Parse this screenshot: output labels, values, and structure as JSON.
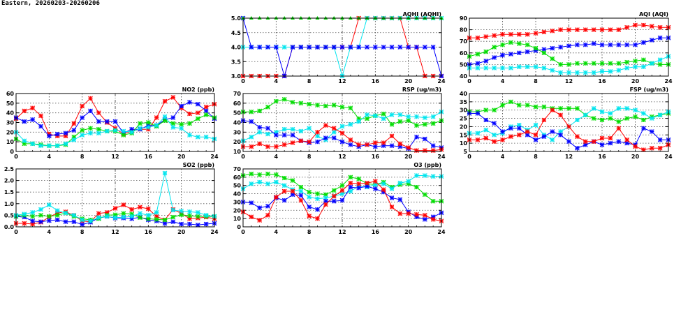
{
  "header": {
    "title": "Eastern, 20260203-20260206"
  },
  "series_colors": [
    "#ff0000",
    "#0000ff",
    "#00dd00",
    "#00e5ee"
  ],
  "chart_data": [
    {
      "type": "line",
      "title": "AQHI (AQHI)",
      "ylim": [
        3,
        5
      ],
      "yticks": [
        "3.0",
        "3.5",
        "4.0",
        "4.5",
        "5.0"
      ],
      "xlim": [
        0,
        24
      ],
      "xticks": [
        "0",
        "4",
        "8",
        "12",
        "16",
        "20",
        "24"
      ],
      "grid": true,
      "series": [
        {
          "name": "red",
          "values": [
            3,
            3,
            3,
            3,
            3,
            3,
            4,
            4,
            4,
            4,
            4,
            4,
            4,
            4,
            5,
            5,
            5,
            5,
            5,
            5,
            4,
            4,
            3,
            3,
            3
          ]
        },
        {
          "name": "cyan",
          "values": [
            4,
            4,
            4,
            4,
            4,
            4,
            4,
            4,
            4,
            4,
            4,
            4,
            3,
            4,
            4,
            5,
            5,
            5,
            5,
            5,
            5,
            5,
            5,
            5,
            5
          ]
        },
        {
          "name": "blue",
          "values": [
            5,
            4,
            4,
            4,
            4,
            3,
            4,
            4,
            4,
            4,
            4,
            4,
            4,
            4,
            4,
            4,
            4,
            4,
            4,
            4,
            4,
            4,
            4,
            4,
            3
          ]
        },
        {
          "name": "green",
          "values": [
            5,
            5,
            5,
            5,
            5,
            5,
            5,
            5,
            5,
            5,
            5,
            5,
            5,
            5,
            5,
            5,
            5,
            5,
            5,
            5,
            5,
            5,
            5,
            5,
            5
          ]
        }
      ]
    },
    {
      "type": "line",
      "title": "AQI (AQI)",
      "ylim": [
        40,
        90
      ],
      "yticks": [
        "40",
        "50",
        "60",
        "70",
        "80",
        "90"
      ],
      "xlim": [
        0,
        24
      ],
      "xticks": [
        "0",
        "4",
        "8",
        "12",
        "16",
        "20",
        "24"
      ],
      "grid": true,
      "series": [
        {
          "name": "red",
          "values": [
            73,
            73,
            74,
            75,
            76,
            76,
            76,
            76,
            77,
            78,
            79,
            80,
            80,
            80,
            80,
            80,
            80,
            80,
            80,
            82,
            84,
            84,
            83,
            82,
            82
          ]
        },
        {
          "name": "blue",
          "values": [
            50,
            51,
            53,
            56,
            58,
            59,
            60,
            61,
            62,
            63,
            64,
            65,
            66,
            67,
            67,
            68,
            67,
            67,
            67,
            67,
            67,
            69,
            71,
            73,
            73
          ]
        },
        {
          "name": "green",
          "values": [
            57,
            59,
            61,
            65,
            67,
            69,
            68,
            67,
            64,
            60,
            55,
            50,
            50,
            51,
            51,
            51,
            51,
            51,
            51,
            52,
            53,
            54,
            51,
            50,
            50
          ]
        },
        {
          "name": "cyan",
          "values": [
            47,
            47,
            47,
            47,
            47,
            47,
            48,
            48,
            48,
            47,
            45,
            43,
            43,
            43,
            43,
            43,
            44,
            44,
            45,
            47,
            48,
            48,
            51,
            54,
            57
          ]
        }
      ]
    },
    {
      "type": "line",
      "title": "NO2 (ppb)",
      "ylim": [
        0,
        60
      ],
      "yticks": [
        "0",
        "10",
        "20",
        "30",
        "40",
        "50",
        "60"
      ],
      "xlim": [
        0,
        24
      ],
      "xticks": [
        "0",
        "4",
        "8",
        "12",
        "16",
        "20",
        "24"
      ],
      "grid": true,
      "series": [
        {
          "name": "red",
          "values": [
            34,
            42,
            45,
            37,
            18,
            16,
            16,
            29,
            47,
            55,
            40,
            30,
            24,
            18,
            21,
            23,
            23,
            35,
            52,
            56,
            45,
            39,
            40,
            46,
            49
          ]
        },
        {
          "name": "blue",
          "values": [
            35,
            31,
            33,
            26,
            16,
            18,
            19,
            22,
            35,
            42,
            31,
            31,
            31,
            19,
            23,
            23,
            27,
            27,
            33,
            35,
            47,
            51,
            49,
            42,
            34
          ]
        },
        {
          "name": "green",
          "values": [
            13,
            8,
            8,
            7,
            6,
            6,
            7,
            15,
            22,
            24,
            23,
            21,
            21,
            17,
            19,
            29,
            30,
            26,
            32,
            29,
            28,
            29,
            34,
            38,
            35
          ]
        },
        {
          "name": "cyan",
          "values": [
            20,
            11,
            8,
            6,
            6,
            6,
            8,
            12,
            17,
            19,
            19,
            21,
            22,
            21,
            20,
            24,
            25,
            27,
            36,
            25,
            24,
            17,
            15,
            15,
            13
          ]
        }
      ]
    },
    {
      "type": "line",
      "title": "RSP (ug/m3)",
      "ylim": [
        10,
        70
      ],
      "yticks": [
        "10",
        "20",
        "30",
        "40",
        "50",
        "60",
        "70"
      ],
      "xlim": [
        0,
        24
      ],
      "xticks": [
        "0",
        "4",
        "8",
        "12",
        "16",
        "20",
        "24"
      ],
      "grid": true,
      "series": [
        {
          "name": "green",
          "values": [
            51,
            51,
            52,
            56,
            62,
            64,
            61,
            60,
            59,
            58,
            57,
            58,
            56,
            55,
            44,
            44,
            47,
            49,
            38,
            41,
            42,
            37,
            38,
            39,
            42
          ]
        },
        {
          "name": "cyan",
          "values": [
            21,
            25,
            30,
            28,
            30,
            33,
            33,
            31,
            34,
            26,
            22,
            30,
            36,
            38,
            41,
            48,
            47,
            44,
            48,
            48,
            46,
            46,
            45,
            46,
            51
          ]
        },
        {
          "name": "blue",
          "values": [
            42,
            41,
            35,
            34,
            27,
            27,
            27,
            21,
            19,
            20,
            24,
            24,
            20,
            17,
            15,
            17,
            15,
            16,
            16,
            15,
            13,
            25,
            23,
            16,
            14
          ]
        },
        {
          "name": "red",
          "values": [
            15,
            15,
            18,
            15,
            15,
            17,
            19,
            21,
            20,
            30,
            37,
            34,
            29,
            22,
            17,
            17,
            19,
            19,
            26,
            18,
            14,
            11,
            11,
            11,
            12
          ]
        }
      ]
    },
    {
      "type": "line",
      "title": "FSP (ug/m3)",
      "ylim": [
        5,
        40
      ],
      "yticks": [
        "5",
        "10",
        "15",
        "20",
        "25",
        "30",
        "35",
        "40"
      ],
      "xlim": [
        0,
        24
      ],
      "xticks": [
        "0",
        "4",
        "8",
        "12",
        "16",
        "20",
        "24"
      ],
      "grid": true,
      "series": [
        {
          "name": "green",
          "values": [
            29,
            29,
            30,
            30,
            33,
            35,
            33,
            33,
            32,
            32,
            31,
            31,
            31,
            31,
            27,
            25,
            24,
            25,
            23,
            25,
            26,
            24,
            26,
            27,
            28
          ]
        },
        {
          "name": "cyan",
          "values": [
            16,
            16,
            18,
            15,
            16,
            20,
            21,
            18,
            21,
            15,
            12,
            17,
            20,
            24,
            27,
            31,
            29,
            28,
            31,
            31,
            30,
            28,
            25,
            27,
            29
          ]
        },
        {
          "name": "blue",
          "values": [
            28,
            28,
            24,
            22,
            17,
            19,
            19,
            15,
            12,
            14,
            17,
            15,
            11,
            7,
            9,
            11,
            9,
            10,
            11,
            10,
            9,
            19,
            17,
            12,
            12
          ]
        },
        {
          "name": "red",
          "values": [
            12,
            12,
            13,
            11,
            12,
            14,
            15,
            17,
            15,
            24,
            30,
            27,
            20,
            14,
            11,
            11,
            13,
            13,
            19,
            12,
            8,
            6,
            7,
            7,
            9
          ]
        }
      ]
    },
    {
      "type": "line",
      "title": "SO2 (ppb)",
      "ylim": [
        0,
        2.5
      ],
      "yticks": [
        "0.0",
        "0.5",
        "1.0",
        "1.5",
        "2.0",
        "2.5"
      ],
      "xlim": [
        0,
        24
      ],
      "xticks": [
        "0",
        "4",
        "8",
        "12",
        "16",
        "20",
        "24"
      ],
      "grid": true,
      "series": [
        {
          "name": "red",
          "values": [
            0.15,
            0.15,
            0.12,
            0.2,
            0.42,
            0.6,
            0.65,
            0.5,
            0.25,
            0.22,
            0.58,
            0.62,
            0.8,
            0.95,
            0.75,
            0.85,
            0.78,
            0.45,
            0.3,
            0.75,
            0.58,
            0.35,
            0.38,
            0.42,
            0.35
          ]
        },
        {
          "name": "blue",
          "values": [
            0.45,
            0.42,
            0.25,
            0.22,
            0.27,
            0.3,
            0.22,
            0.22,
            0.1,
            0.2,
            0.38,
            0.45,
            0.38,
            0.38,
            0.35,
            0.42,
            0.3,
            0.25,
            0.15,
            0.22,
            0.12,
            0.12,
            0.08,
            0.12,
            0.15
          ]
        },
        {
          "name": "green",
          "values": [
            0.45,
            0.5,
            0.45,
            0.5,
            0.45,
            0.5,
            0.6,
            0.45,
            0.35,
            0.3,
            0.35,
            0.5,
            0.52,
            0.58,
            0.55,
            0.4,
            0.35,
            0.32,
            0.3,
            0.42,
            0.52,
            0.48,
            0.45,
            0.45,
            0.45
          ]
        },
        {
          "name": "cyan",
          "values": [
            0.5,
            0.55,
            0.62,
            0.75,
            0.95,
            0.7,
            0.6,
            0.5,
            0.3,
            0.25,
            0.4,
            0.45,
            0.4,
            0.42,
            0.45,
            0.58,
            0.5,
            0.62,
            2.32,
            0.72,
            0.68,
            0.65,
            0.62,
            0.5,
            0.45
          ]
        }
      ]
    },
    {
      "type": "line",
      "title": "O3 (ppb)",
      "ylim": [
        0,
        70
      ],
      "yticks": [
        "0",
        "10",
        "20",
        "30",
        "40",
        "50",
        "60",
        "70"
      ],
      "xlim": [
        0,
        24
      ],
      "xticks": [
        "0",
        "4",
        "8",
        "12",
        "16",
        "20",
        "24"
      ],
      "grid": true,
      "series": [
        {
          "name": "green",
          "values": [
            62,
            64,
            63,
            64,
            63,
            59,
            56,
            48,
            42,
            40,
            39,
            44,
            50,
            60,
            58,
            52,
            51,
            54,
            48,
            51,
            52,
            48,
            39,
            31,
            31
          ]
        },
        {
          "name": "cyan",
          "values": [
            46,
            52,
            54,
            52,
            54,
            50,
            45,
            43,
            36,
            34,
            35,
            37,
            40,
            43,
            49,
            48,
            51,
            52,
            46,
            53,
            55,
            62,
            62,
            61,
            61
          ]
        },
        {
          "name": "blue",
          "values": [
            30,
            29,
            23,
            25,
            35,
            32,
            39,
            38,
            24,
            21,
            31,
            31,
            32,
            48,
            47,
            49,
            46,
            42,
            35,
            33,
            18,
            12,
            9,
            12,
            17
          ]
        },
        {
          "name": "red",
          "values": [
            18,
            12,
            8,
            14,
            36,
            43,
            43,
            32,
            13,
            10,
            27,
            37,
            44,
            53,
            52,
            53,
            55,
            45,
            24,
            16,
            16,
            15,
            14,
            9,
            7
          ]
        }
      ]
    }
  ]
}
